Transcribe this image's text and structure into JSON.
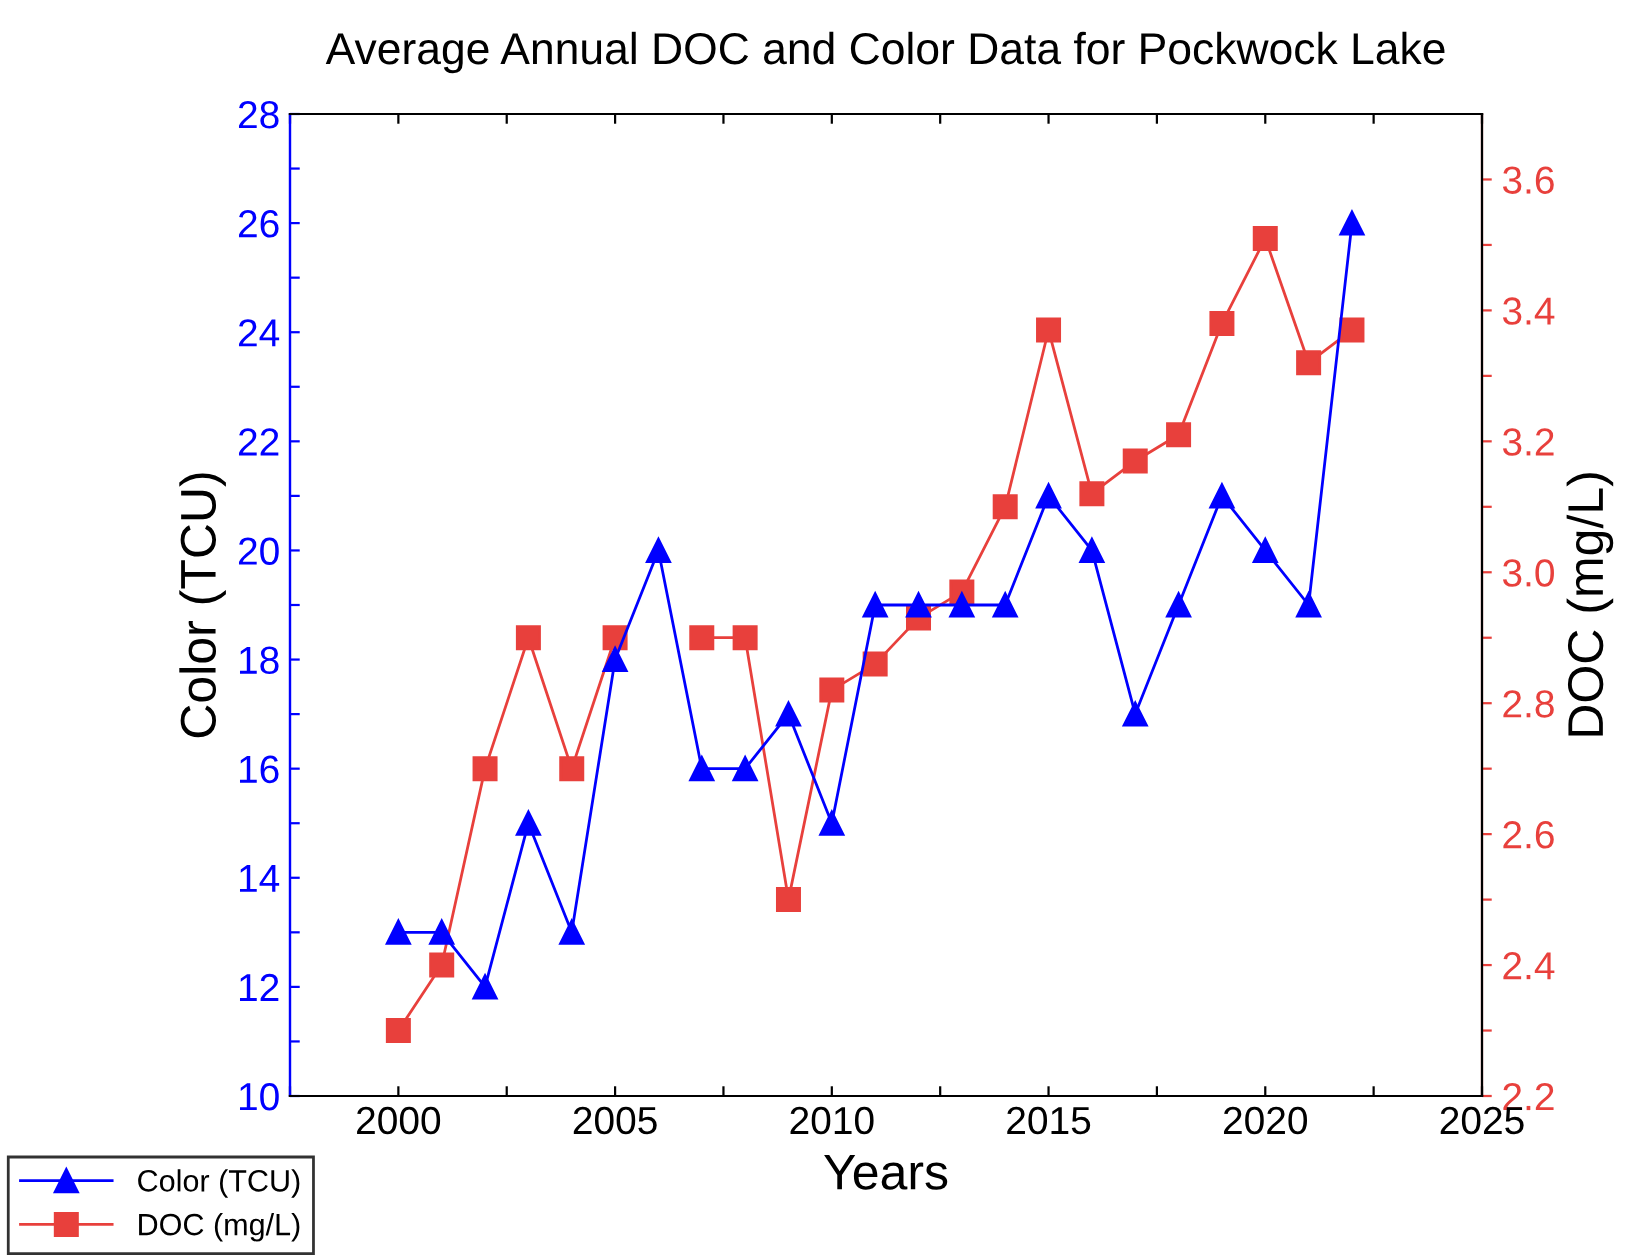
{
  "chart_data": {
    "type": "line",
    "title": "Average Annual DOC and Color Data for Pockwock Lake",
    "xlabel": "Years",
    "ylabel": "Color (TCU)",
    "y2label": "DOC (mg/L)",
    "x": [
      2000,
      2001,
      2002,
      2003,
      2004,
      2005,
      2006,
      2007,
      2008,
      2009,
      2010,
      2011,
      2012,
      2013,
      2014,
      2015,
      2016,
      2017,
      2018,
      2019,
      2020,
      2021,
      2022
    ],
    "series": [
      {
        "name": "Color (TCU)",
        "color": "#0000ff",
        "marker": "triangle",
        "values": [
          13,
          13,
          12,
          15,
          13,
          18,
          20,
          16,
          16,
          17,
          15,
          19,
          19,
          19,
          19,
          21,
          20,
          17,
          19,
          21,
          20,
          19,
          26
        ]
      },
      {
        "name": "DOC (mg/L)",
        "color": "#e8403c",
        "marker": "square",
        "axis": "y2",
        "values": [
          2.3,
          2.4,
          2.7,
          2.9,
          2.7,
          2.9,
          null,
          2.9,
          2.9,
          2.5,
          2.82,
          2.86,
          2.93,
          2.97,
          3.1,
          3.37,
          3.12,
          3.17,
          3.21,
          3.38,
          3.51,
          3.32,
          3.37
        ]
      }
    ],
    "xlim": [
      1997.5,
      2025
    ],
    "xticks": [
      {
        "value": 1997.5,
        "label": null
      },
      2000,
      {
        "value": 2002.5,
        "label": null
      },
      2005,
      {
        "value": 2007.5,
        "label": null
      },
      2010,
      {
        "value": 2012.5,
        "label": null
      },
      2015,
      {
        "value": 2017.5,
        "label": null
      },
      2020,
      {
        "value": 2022.5,
        "label": null
      },
      2025
    ],
    "ylim": [
      10,
      28
    ],
    "yticks": [
      10,
      {
        "value": 11,
        "label": null
      },
      12,
      {
        "value": 13,
        "label": null
      },
      14,
      {
        "value": 15,
        "label": null
      },
      16,
      {
        "value": 17,
        "label": null
      },
      18,
      {
        "value": 19,
        "label": null
      },
      20,
      {
        "value": 21,
        "label": null
      },
      22,
      {
        "value": 23,
        "label": null
      },
      24,
      {
        "value": 25,
        "label": null
      },
      26,
      {
        "value": 27,
        "label": null
      },
      28
    ],
    "y2lim": [
      2.2,
      3.7
    ],
    "y2ticks": [
      {
        "value": 2.2,
        "label": "2.2"
      },
      {
        "value": 2.3,
        "label": null
      },
      {
        "value": 2.4,
        "label": "2.4"
      },
      {
        "value": 2.5,
        "label": null
      },
      {
        "value": 2.6,
        "label": "2.6"
      },
      {
        "value": 2.7,
        "label": null
      },
      {
        "value": 2.8,
        "label": "2.8"
      },
      {
        "value": 2.9,
        "label": null
      },
      {
        "value": 3.0,
        "label": "3.0"
      },
      {
        "value": 3.1,
        "label": null
      },
      {
        "value": 3.2,
        "label": "3.2"
      },
      {
        "value": 3.3,
        "label": null
      },
      {
        "value": 3.4,
        "label": "3.4"
      },
      {
        "value": 3.5,
        "label": null
      },
      {
        "value": 3.6,
        "label": "3.6"
      }
    ],
    "grid": false,
    "legend": "bottom left",
    "line_style": "solid"
  }
}
